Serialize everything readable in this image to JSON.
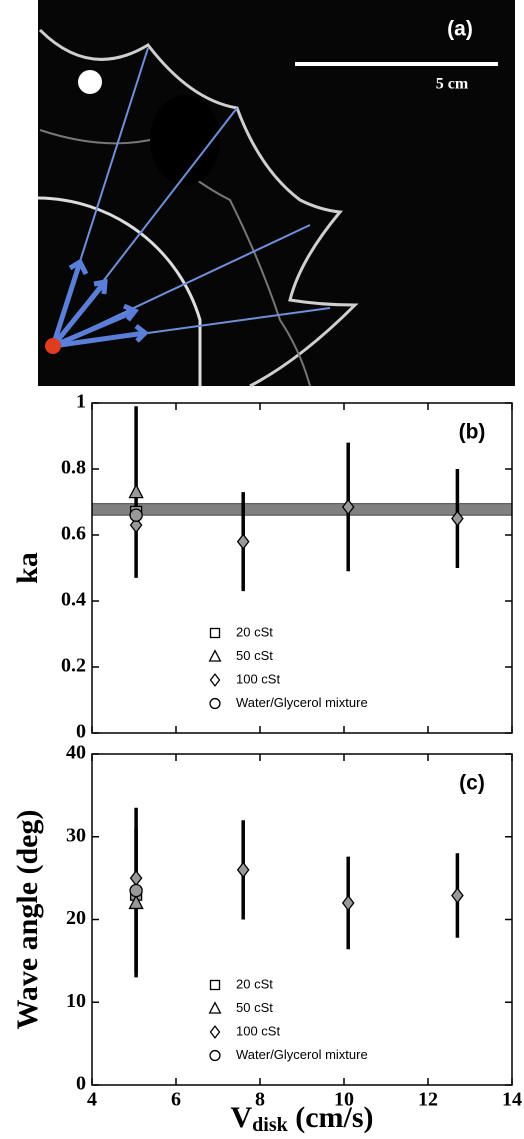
{
  "image_panel": {
    "label": "(a)",
    "scale_bar": "5 cm"
  },
  "chart_data": [
    {
      "type": "scatter",
      "panel_label": "(b)",
      "ylabel": "ka",
      "xlim": [
        4,
        14
      ],
      "xticks": [
        4,
        6,
        8,
        10,
        12,
        14
      ],
      "xtick_labels": false,
      "ylim": [
        0,
        1
      ],
      "yticks": [
        0,
        0.2,
        0.4,
        0.6,
        0.8,
        1
      ],
      "band": [
        0.66,
        0.695
      ],
      "band_color": "#808080",
      "series": [
        {
          "name": "20 cSt",
          "marker": "square",
          "color": "#999999",
          "x": [
            5.05
          ],
          "values": [
            0.67
          ],
          "errors": [
            null
          ]
        },
        {
          "name": "50 cSt",
          "marker": "triangle",
          "color": "#999999",
          "x": [
            5.05
          ],
          "values": [
            0.73
          ],
          "errors": [
            0.26
          ]
        },
        {
          "name": "100 cSt",
          "marker": "diamond",
          "color": "#999999",
          "x": [
            5.05,
            7.6,
            10.1,
            12.7
          ],
          "values": [
            0.63,
            0.58,
            0.685,
            0.65
          ],
          "errors": [
            null,
            0.15,
            0.195,
            0.15
          ]
        },
        {
          "name": "Water/Glycerol mixture",
          "marker": "circle",
          "color": "#999999",
          "x": [
            5.05
          ],
          "values": [
            0.66
          ],
          "errors": [
            null
          ]
        }
      ]
    },
    {
      "type": "scatter",
      "panel_label": "(c)",
      "ylabel": "Wave angle (deg)",
      "xlabel": {
        "main": "V",
        "sub": "disk",
        "unit": " (cm/s)"
      },
      "xlim": [
        4,
        14
      ],
      "xticks": [
        4,
        6,
        8,
        10,
        12,
        14
      ],
      "xtick_labels": true,
      "ylim": [
        0,
        40
      ],
      "yticks": [
        0,
        10,
        20,
        30,
        40
      ],
      "series": [
        {
          "name": "20 cSt",
          "marker": "square",
          "color": "#999999",
          "x": [
            5.05
          ],
          "values": [
            23
          ],
          "errors": [
            null
          ]
        },
        {
          "name": "50 cSt",
          "marker": "triangle",
          "color": "#999999",
          "x": [
            5.05
          ],
          "values": [
            22
          ],
          "errors": [
            9
          ]
        },
        {
          "name": "100 cSt",
          "marker": "diamond",
          "color": "#999999",
          "x": [
            5.05,
            7.6,
            10.1,
            12.7
          ],
          "values": [
            25,
            26,
            22,
            22.9
          ],
          "errors": [
            null,
            6,
            5.6,
            5.1
          ]
        },
        {
          "name": "Water/Glycerol mixture",
          "marker": "circle",
          "color": "#999999",
          "x": [
            5.05
          ],
          "values": [
            23.5
          ],
          "errors": [
            10
          ]
        }
      ]
    }
  ]
}
